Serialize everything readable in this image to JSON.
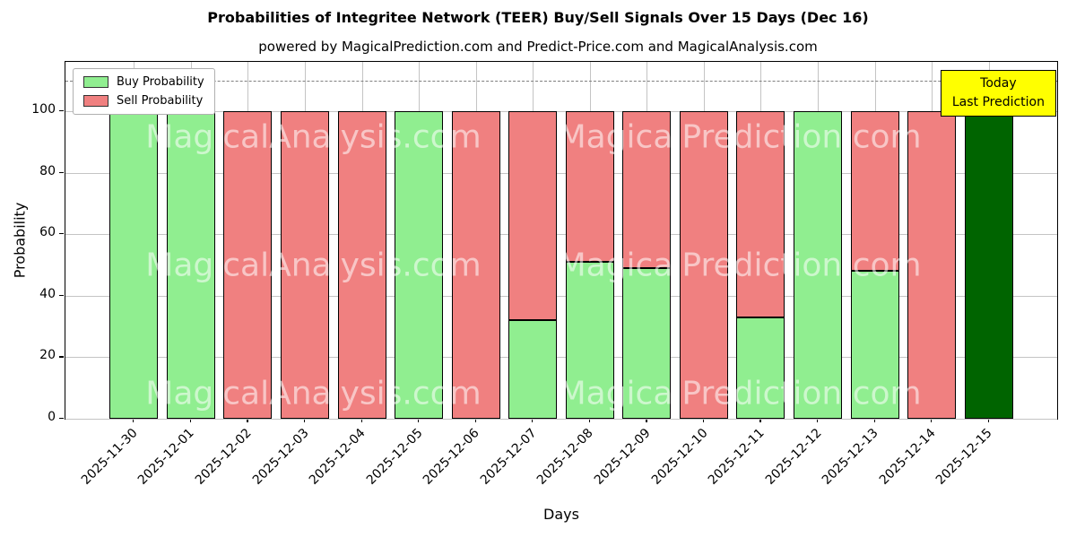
{
  "title": "Probabilities of Integritee Network (TEER) Buy/Sell Signals Over 15 Days (Dec 16)",
  "subtitle": "powered by MagicalPrediction.com and Predict-Price.com and MagicalAnalysis.com",
  "legend": {
    "buy_label": "Buy Probability",
    "sell_label": "Sell Probability"
  },
  "annotation": {
    "line1": "Today",
    "line2": "Last Prediction"
  },
  "watermarks": [
    "MagicalAnalysis.com",
    "MagicalPrediction.com"
  ],
  "axes": {
    "xlabel": "Days",
    "ylabel": "Probability"
  },
  "colors": {
    "buy": "#90ee90",
    "sell": "#f08080",
    "today": "#006400",
    "annotation_bg": "#ffff00",
    "grid": "#c4c4c4",
    "dashed_line": "#7f7f7f"
  },
  "chart_data": {
    "type": "bar",
    "stacked": true,
    "title": "Probabilities of Integritee Network (TEER) Buy/Sell Signals Over 15 Days (Dec 16)",
    "xlabel": "Days",
    "ylabel": "Probability",
    "categories": [
      "2025-11-30",
      "2025-12-01",
      "2025-12-02",
      "2025-12-03",
      "2025-12-04",
      "2025-12-05",
      "2025-12-06",
      "2025-12-07",
      "2025-12-08",
      "2025-12-09",
      "2025-12-10",
      "2025-12-11",
      "2025-12-12",
      "2025-12-13",
      "2025-12-14",
      "2025-12-15"
    ],
    "series": [
      {
        "name": "Buy Probability",
        "color": "#90ee90",
        "values": [
          100,
          100,
          0,
          0,
          0,
          100,
          0,
          32,
          51,
          49,
          0,
          33,
          100,
          48,
          0,
          100
        ]
      },
      {
        "name": "Sell Probability",
        "color": "#f08080",
        "values": [
          0,
          0,
          100,
          100,
          100,
          0,
          100,
          68,
          49,
          51,
          100,
          67,
          0,
          52,
          100,
          0
        ]
      }
    ],
    "today_index": 15,
    "today_color": "#006400",
    "yticks": [
      0,
      20,
      40,
      60,
      80,
      100
    ],
    "ylim": [
      0,
      116
    ],
    "xlim": [
      -1.2,
      16.2
    ],
    "bar_width": 0.85,
    "dashed_line_y": 110,
    "grid": true,
    "legend_position": "upper left"
  }
}
